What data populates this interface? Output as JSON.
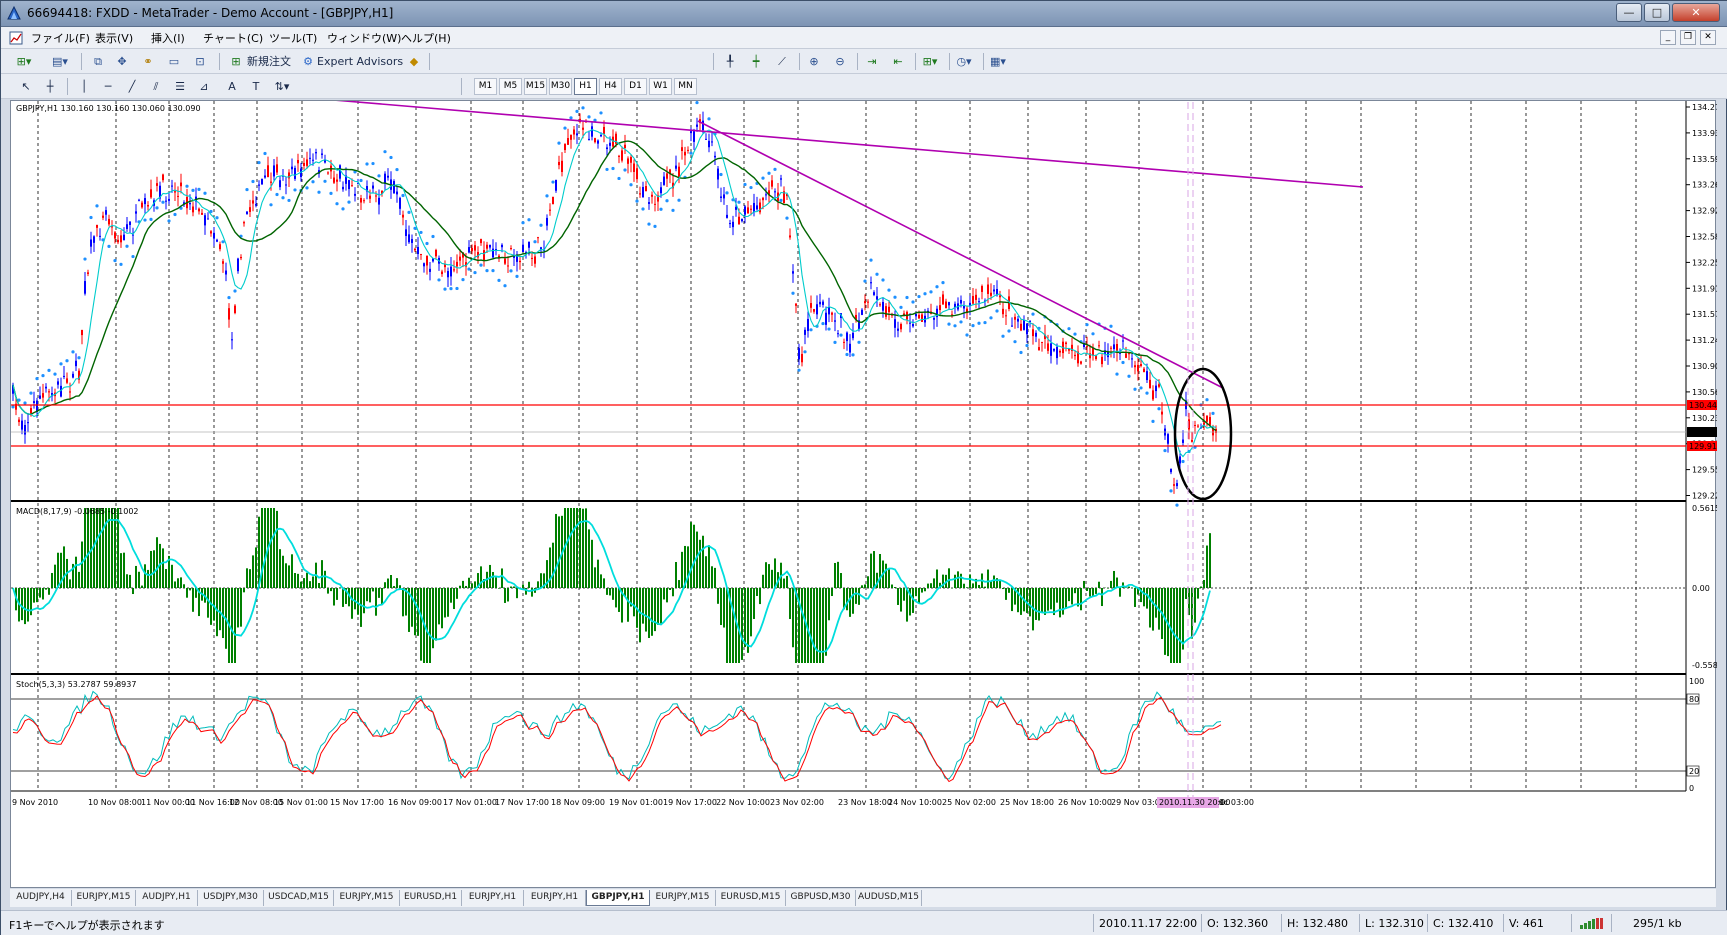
{
  "window": {
    "title": "66694418: FXDD - MetaTrader - Demo Account - [GBPJPY,H1]",
    "minimize": "—",
    "maximize": "□",
    "close": "✕"
  },
  "menu": [
    "ファイル(F)",
    "表示(V)",
    "挿入(I)",
    "チャート(C)",
    "ツール(T)",
    "ウィンドウ(W)",
    "ヘルプ(H)"
  ],
  "toolbar": {
    "new_order_label": "新規注文",
    "expert_advisors_label": "Expert Advisors",
    "timeframes": [
      "M1",
      "M5",
      "M15",
      "M30",
      "H1",
      "H4",
      "D1",
      "W1",
      "MN"
    ],
    "active_timeframe": "H1"
  },
  "chart": {
    "header": "GBPJPY,H1  130.160 130.160 130.060 130.090",
    "macd_label": "MACD(8,17,9) -0.0685 -0.1002",
    "stoch_label": "Stoch(5,3,3) 53.2787 59.8937",
    "price_labels": [
      "134.270",
      "133.930",
      "133.590",
      "133.260",
      "132.920",
      "132.580",
      "132.250",
      "131.910",
      "131.570",
      "131.240",
      "130.900",
      "130.560",
      "130.230",
      "129.890",
      "129.550",
      "129.220"
    ],
    "macd_labels": [
      "0.5615",
      "0.00",
      "-0.5582"
    ],
    "stoch_labels": [
      "100",
      "80",
      "20",
      "0"
    ],
    "markers": {
      "upper": "130.447",
      "current": "130.090",
      "lower": "129.915"
    },
    "time_labels": [
      "9 Nov 2010",
      "10 Nov 08:00",
      "11 Nov 00:00",
      "11 Nov 16:00",
      "12 Nov 08:00",
      "15 Nov 01:00",
      "15 Nov 17:00",
      "16 Nov 09:00",
      "17 Nov 01:00",
      "17 Nov 17:00",
      "18 Nov 09:00",
      "19 Nov 01:00",
      "19 Nov 17:00",
      "22 Nov 10:00",
      "23 Nov 02:00",
      "23 Nov 18:00",
      "24 Nov 10:00",
      "25 Nov 02:00",
      "25 Nov 18:00",
      "26 Nov 10:00",
      "29 Nov 03:00",
      "29 Nov 19:0"
    ],
    "cursor_time": "2010.11.30 20:00",
    "trailing_time": "ec 03:00",
    "colors": {
      "up": "#0000ff",
      "down": "#ff0000",
      "ma_slow": "#006400",
      "ma_fast": "#00cccc",
      "sar": "#1e90ff",
      "trend": "#b000b0",
      "hline": "#ff0000",
      "macd_hist": "#008000",
      "macd_signal": "#00dddd",
      "stoch_main": "#00bcbc",
      "stoch_signal": "#ff0000"
    }
  },
  "tabs": [
    "AUDJPY,H4",
    "EURJPY,M15",
    "AUDJPY,H1",
    "USDJPY,M30",
    "USDCAD,M15",
    "EURJPY,M15",
    "EURUSD,H1",
    "EURJPY,H1",
    "EURJPY,H1",
    "GBPJPY,H1",
    "EURJPY,M15",
    "EURUSD,M15",
    "GBPUSD,M30",
    "AUDUSD,M15"
  ],
  "active_tab": "GBPJPY,H1",
  "status": {
    "help": "F1キーでヘルプが表示されます",
    "time": "2010.11.17 22:00",
    "open": "O: 132.360",
    "high": "H: 132.480",
    "low": "L: 132.310",
    "close": "C: 132.410",
    "volume": "V: 461",
    "traffic": "295/1 kb"
  }
}
